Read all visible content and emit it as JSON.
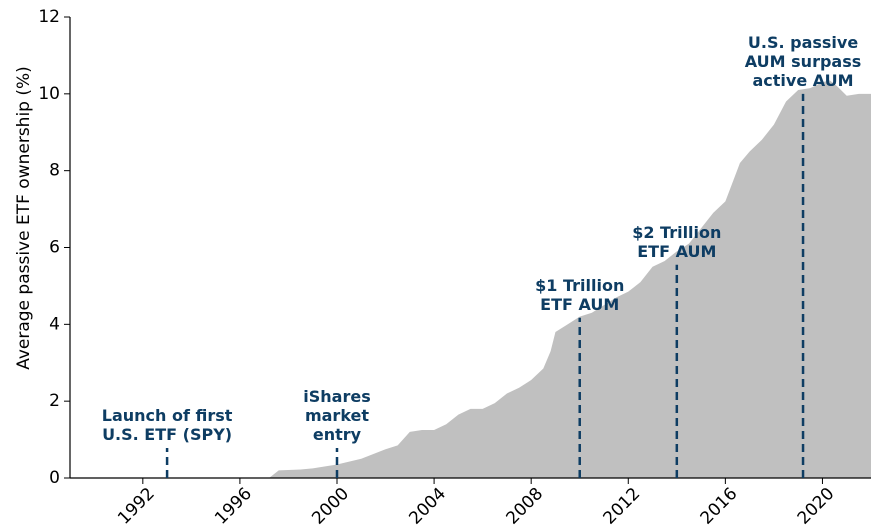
{
  "chart_data": {
    "type": "area",
    "ylabel": "Average passive ETF ownership (%)",
    "color": "#c0c0c0",
    "annotation_color": "#0e3d63",
    "xlim": [
      1989,
      2022
    ],
    "xticks": [
      1992,
      1996,
      2000,
      2004,
      2008,
      2012,
      2016,
      2020
    ],
    "ylim": [
      0,
      12
    ],
    "yticks": [
      0,
      2,
      4,
      6,
      8,
      10,
      12
    ],
    "x": [
      1997.2,
      1997.6,
      1998.5,
      1999,
      2000,
      2001,
      2002,
      2002.5,
      2003,
      2003.5,
      2004,
      2004.5,
      2005,
      2005.5,
      2006,
      2006.5,
      2007,
      2007.5,
      2008,
      2008.5,
      2008.8,
      2009,
      2009.5,
      2010,
      2010.5,
      2011,
      2011.5,
      2012,
      2012.5,
      2013,
      2013.5,
      2014,
      2014.5,
      2015,
      2015.5,
      2016,
      2016.3,
      2016.6,
      2017,
      2017.5,
      2018,
      2018.5,
      2019,
      2019.5,
      2020,
      2020.3,
      2020.6,
      2021,
      2021.5,
      2022
    ],
    "values": [
      0,
      0.2,
      0.22,
      0.25,
      0.35,
      0.5,
      0.75,
      0.85,
      1.2,
      1.25,
      1.25,
      1.4,
      1.65,
      1.8,
      1.8,
      1.95,
      2.2,
      2.35,
      2.55,
      2.85,
      3.3,
      3.8,
      4.0,
      4.2,
      4.3,
      4.5,
      4.7,
      4.85,
      5.1,
      5.5,
      5.65,
      5.9,
      6.1,
      6.5,
      6.9,
      7.2,
      7.7,
      8.2,
      8.5,
      8.8,
      9.2,
      9.8,
      10.1,
      10.15,
      10.3,
      10.35,
      10.2,
      9.95,
      10.0,
      10.0
    ],
    "annotations": [
      {
        "x": 1993,
        "y": 0.78,
        "text": [
          "Launch of first",
          "U.S. ETF (SPY)"
        ]
      },
      {
        "x": 2000,
        "y": 0.78,
        "text": [
          "iShares",
          "market",
          "entry"
        ]
      },
      {
        "x": 2010,
        "y": 4.17,
        "text": [
          "$1 Trillion",
          "ETF AUM"
        ]
      },
      {
        "x": 2014,
        "y": 5.55,
        "text": [
          "$2 Trillion",
          "ETF AUM"
        ]
      },
      {
        "x": 2019.2,
        "y": 10.0,
        "text": [
          "U.S. passive",
          "AUM surpass",
          "active AUM"
        ]
      }
    ]
  }
}
